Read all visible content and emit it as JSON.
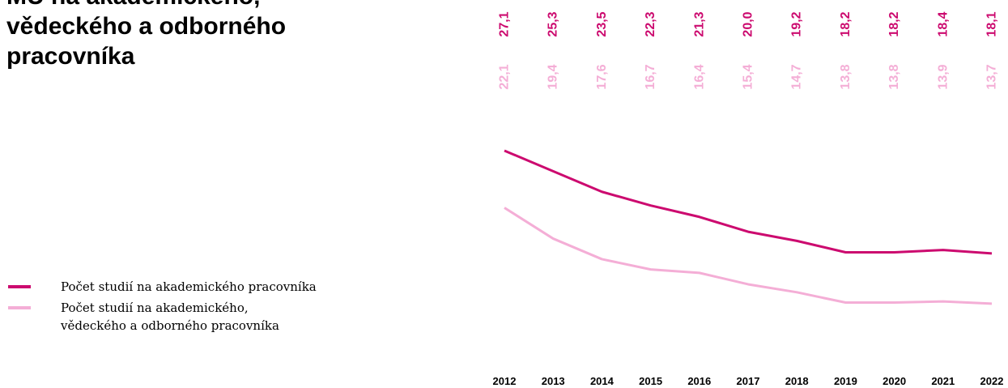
{
  "chart_data": {
    "type": "line",
    "title": "MU na akademického, vědeckého a odborného pracovníka",
    "categories": [
      "2012",
      "2013",
      "2014",
      "2015",
      "2016",
      "2017",
      "2018",
      "2019",
      "2020",
      "2021",
      "2022"
    ],
    "series": [
      {
        "name": "Počet studií na akademického pracovníka",
        "color": "#cc0a6f",
        "values": [
          27.1,
          25.3,
          23.5,
          22.3,
          21.3,
          20.0,
          19.2,
          18.2,
          18.2,
          18.4,
          18.1
        ],
        "value_labels": [
          "27,1",
          "25,3",
          "23,5",
          "22,3",
          "21,3",
          "20,0",
          "19,2",
          "18,2",
          "18,2",
          "18,4",
          "18,1"
        ]
      },
      {
        "name": "Počet studií na akademického, vědeckého a odborného pracovníka",
        "color": "#f4aed6",
        "values": [
          22.1,
          19.4,
          17.6,
          16.7,
          16.4,
          15.4,
          14.7,
          13.8,
          13.8,
          13.9,
          13.7
        ],
        "value_labels": [
          "22,1",
          "19,4",
          "17,6",
          "16,7",
          "16,4",
          "15,4",
          "14,7",
          "13,8",
          "13,8",
          "13,9",
          "13,7"
        ]
      }
    ]
  }
}
